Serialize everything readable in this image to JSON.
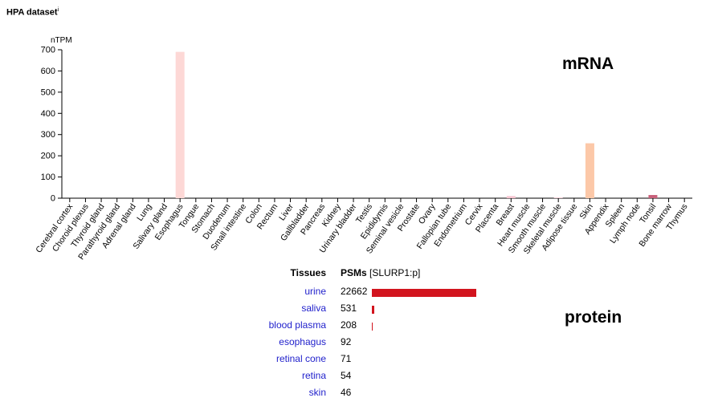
{
  "header": {
    "title": "HPA dataset",
    "info_mark": "i"
  },
  "labels": {
    "mrna": "mRNA",
    "protein": "protein"
  },
  "colors": {
    "esophagus_bar": "#fdd8d6",
    "skin_bar": "#fcc8a8",
    "breast_bar": "#f6c4d0",
    "tonsil_bar": "#c8607a",
    "small_bar": "#f4d0d8",
    "protein_bar": "#d2141e",
    "tissue_link": "#2222cc"
  },
  "chart_data": {
    "type": "bar",
    "ylabel": "nTPM",
    "ylim": [
      0,
      700
    ],
    "yticks": [
      0,
      100,
      200,
      300,
      400,
      500,
      600,
      700
    ],
    "grid": false,
    "categories": [
      "Cerebral cortex",
      "Choroid plexus",
      "Thyroid gland",
      "Parathyroid gland",
      "Adrenal gland",
      "Lung",
      "Salivary gland",
      "Esophagus",
      "Tongue",
      "Stomach",
      "Duodenum",
      "Small intestine",
      "Colon",
      "Rectum",
      "Liver",
      "Gallbladder",
      "Pancreas",
      "Kidney",
      "Urinary bladder",
      "Testis",
      "Epididymis",
      "Seminal vesicle",
      "Prostate",
      "Ovary",
      "Fallopian tube",
      "Endometrium",
      "Cervix",
      "Placenta",
      "Breast",
      "Heart muscle",
      "Smooth muscle",
      "Skeletal muscle",
      "Adipose tissue",
      "Skin",
      "Appendix",
      "Spleen",
      "Lymph node",
      "Tonsil",
      "Bone marrow",
      "Thymus"
    ],
    "values": [
      0,
      0,
      0,
      0,
      0,
      0,
      0,
      690,
      0,
      0,
      0,
      0,
      0,
      0,
      0,
      0,
      0,
      0,
      0,
      0,
      0,
      0,
      0,
      0,
      0,
      0,
      0,
      0,
      10,
      0,
      0,
      2,
      0,
      259,
      0,
      0,
      0,
      15,
      0,
      0
    ]
  },
  "protein": {
    "header_tissues": "Tissues",
    "header_psms": "PSMs",
    "header_psms_unit": "[SLURP1:p]",
    "max": 22662,
    "rows": [
      {
        "tissue": "urine",
        "count": "22662",
        "value": 22662
      },
      {
        "tissue": "saliva",
        "count": "531",
        "value": 531
      },
      {
        "tissue": "blood plasma",
        "count": "208",
        "value": 208
      },
      {
        "tissue": "esophagus",
        "count": "92",
        "value": 92
      },
      {
        "tissue": "retinal cone",
        "count": "71",
        "value": 71
      },
      {
        "tissue": "retina",
        "count": "54",
        "value": 54
      },
      {
        "tissue": "skin",
        "count": "46",
        "value": 46
      }
    ]
  }
}
